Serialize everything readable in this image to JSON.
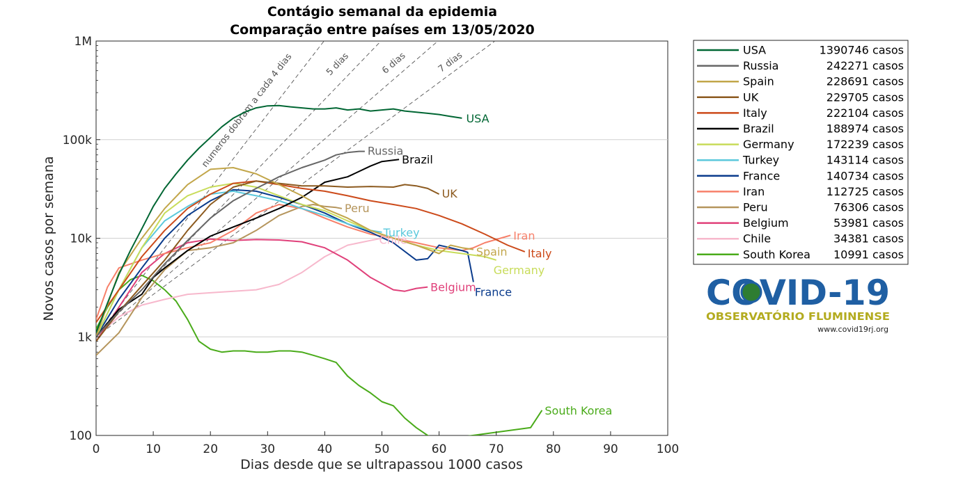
{
  "chart_data": {
    "type": "line",
    "title": "Contágio semanal da epidemia",
    "subtitle": "Comparação entre países em 13/05/2020",
    "xlabel": "Dias desde que se ultrapassou 1000 casos",
    "ylabel": "Novos casos por semana",
    "xlim": [
      0,
      100
    ],
    "ylim": [
      100,
      1000000
    ],
    "yscale": "log",
    "xticks": [
      0,
      10,
      20,
      30,
      40,
      50,
      60,
      70,
      80,
      90,
      100
    ],
    "yticks": [
      100,
      1000,
      10000,
      100000,
      1000000
    ],
    "ytick_labels": [
      "100",
      "1k",
      "10k",
      "100k",
      "1M"
    ],
    "grid": "y-major",
    "legend_position": "outside-right",
    "doubling_guides": [
      {
        "label": "numeros dobram a cada 4 dias",
        "days": 4
      },
      {
        "label": "5 dias",
        "days": 5
      },
      {
        "label": "6 dias",
        "days": 6
      },
      {
        "label": "7 dias",
        "days": 7
      }
    ],
    "series": [
      {
        "name": "USA",
        "total": "1390746 casos",
        "color": "#006633",
        "x": [
          0,
          2,
          4,
          6,
          8,
          10,
          12,
          14,
          16,
          18,
          20,
          22,
          24,
          26,
          28,
          30,
          32,
          34,
          36,
          38,
          40,
          42,
          44,
          46,
          48,
          50,
          52,
          54,
          56,
          58,
          60,
          62,
          64
        ],
        "y": [
          1100,
          2200,
          4300,
          7500,
          12500,
          21000,
          32000,
          45000,
          62000,
          82000,
          105000,
          135000,
          165000,
          190000,
          210000,
          220000,
          222000,
          215000,
          210000,
          205000,
          205000,
          210000,
          200000,
          205000,
          195000,
          200000,
          205000,
          195000,
          190000,
          185000,
          180000,
          172000,
          165000
        ]
      },
      {
        "name": "Russia",
        "total": "242271 casos",
        "color": "#666666",
        "x": [
          0,
          4,
          8,
          12,
          16,
          20,
          24,
          28,
          32,
          36,
          40,
          42,
          44,
          46,
          47
        ],
        "y": [
          1000,
          1800,
          3000,
          5500,
          9500,
          16000,
          24000,
          32000,
          42000,
          52000,
          62000,
          70000,
          74000,
          76000,
          76000
        ]
      },
      {
        "name": "Spain",
        "total": "228691 casos",
        "color": "#c2a64a",
        "x": [
          0,
          4,
          8,
          12,
          16,
          20,
          24,
          28,
          32,
          36,
          40,
          44,
          48,
          52,
          56,
          60,
          62,
          64,
          66
        ],
        "y": [
          1000,
          4500,
          10000,
          20000,
          35000,
          50000,
          52000,
          45000,
          35000,
          27000,
          20000,
          16000,
          12000,
          10000,
          8500,
          7000,
          8500,
          8000,
          7700
        ]
      },
      {
        "name": "UK",
        "total": "229705 casos",
        "color": "#8c5a1f",
        "x": [
          0,
          4,
          8,
          12,
          16,
          20,
          24,
          28,
          32,
          36,
          40,
          44,
          48,
          52,
          54,
          56,
          58,
          60
        ],
        "y": [
          900,
          1800,
          3300,
          6000,
          12000,
          22000,
          33000,
          38000,
          36000,
          34000,
          34000,
          33000,
          33500,
          33000,
          35000,
          34000,
          32000,
          28000
        ]
      },
      {
        "name": "Italy",
        "total": "222104 casos",
        "color": "#cc4a1a",
        "x": [
          0,
          4,
          8,
          12,
          16,
          20,
          24,
          28,
          32,
          36,
          40,
          44,
          48,
          52,
          56,
          60,
          64,
          68,
          72,
          75
        ],
        "y": [
          1400,
          3000,
          6500,
          12000,
          20000,
          28000,
          36000,
          38000,
          35000,
          32000,
          30000,
          27000,
          24000,
          22000,
          20000,
          17000,
          14000,
          11000,
          8500,
          7300
        ]
      },
      {
        "name": "Brazil",
        "total": "188974 casos",
        "color": "#000000",
        "x": [
          0,
          4,
          8,
          10,
          12,
          16,
          20,
          24,
          28,
          32,
          36,
          40,
          44,
          48,
          50,
          52,
          53
        ],
        "y": [
          1000,
          1900,
          2700,
          4000,
          5000,
          7500,
          10500,
          13000,
          16000,
          20000,
          26000,
          37000,
          42000,
          54000,
          60000,
          62000,
          63000
        ]
      },
      {
        "name": "Germany",
        "total": "172239 casos",
        "color": "#c8dc5a",
        "x": [
          0,
          4,
          8,
          12,
          16,
          20,
          24,
          28,
          32,
          36,
          40,
          44,
          48,
          52,
          56,
          60,
          64,
          68,
          70
        ],
        "y": [
          1000,
          3000,
          8000,
          18000,
          27000,
          33000,
          36000,
          33000,
          27000,
          22000,
          19000,
          15000,
          12000,
          10000,
          8500,
          7500,
          7000,
          6500,
          6000
        ]
      },
      {
        "name": "Turkey",
        "total": "143114 casos",
        "color": "#5bc8dc",
        "x": [
          0,
          4,
          8,
          12,
          16,
          20,
          24,
          28,
          32,
          36,
          40,
          44,
          48,
          50
        ],
        "y": [
          1000,
          3000,
          8000,
          15000,
          21000,
          28000,
          30000,
          27000,
          24000,
          20000,
          17000,
          14000,
          12000,
          11500
        ]
      },
      {
        "name": "France",
        "total": "140734 casos",
        "color": "#0a3b8c",
        "x": [
          0,
          4,
          8,
          12,
          16,
          20,
          24,
          28,
          32,
          36,
          40,
          44,
          48,
          52,
          56,
          58,
          60,
          62,
          64,
          65,
          66
        ],
        "y": [
          1000,
          2400,
          5000,
          10000,
          17000,
          24000,
          31000,
          30000,
          26000,
          22000,
          18000,
          14000,
          11500,
          9000,
          6000,
          6200,
          8500,
          8000,
          7500,
          7200,
          3600
        ]
      },
      {
        "name": "Iran",
        "total": "112725 casos",
        "color": "#f7806a",
        "x": [
          0,
          2,
          4,
          8,
          12,
          16,
          20,
          24,
          28,
          32,
          36,
          40,
          44,
          48,
          52,
          56,
          60,
          64,
          66,
          68,
          72,
          72.5
        ],
        "y": [
          1500,
          3200,
          5000,
          6000,
          7000,
          8000,
          9000,
          12000,
          18000,
          22000,
          20000,
          16000,
          13000,
          11000,
          10000,
          9000,
          8000,
          7500,
          8000,
          9000,
          10500,
          10700
        ]
      },
      {
        "name": "Peru",
        "total": "76306 casos",
        "color": "#b5955c",
        "x": [
          0,
          4,
          8,
          12,
          16,
          20,
          24,
          28,
          32,
          36,
          38,
          40,
          42,
          43
        ],
        "y": [
          650,
          1100,
          2500,
          4800,
          7500,
          8000,
          9000,
          12000,
          17000,
          21000,
          22000,
          21000,
          20500,
          20000
        ]
      },
      {
        "name": "Belgium",
        "total": "53981 casos",
        "color": "#e0407a",
        "x": [
          0,
          4,
          8,
          12,
          16,
          20,
          24,
          28,
          32,
          36,
          40,
          44,
          48,
          52,
          54,
          56,
          58
        ],
        "y": [
          900,
          2000,
          4500,
          7000,
          9000,
          9800,
          9500,
          9700,
          9600,
          9200,
          8000,
          6000,
          4000,
          3000,
          2900,
          3100,
          3200
        ]
      },
      {
        "name": "Chile",
        "total": "34381 casos",
        "color": "#f7b8cc",
        "x": [
          0,
          4,
          8,
          12,
          16,
          20,
          24,
          28,
          32,
          36,
          40,
          44,
          48,
          50
        ],
        "y": [
          1000,
          1600,
          2100,
          2400,
          2700,
          2800,
          2900,
          3000,
          3400,
          4500,
          6500,
          8500,
          9500,
          10000
        ]
      },
      {
        "name": "South Korea",
        "total": "10991 casos",
        "color": "#4aab1a",
        "x": [
          0,
          2,
          4,
          6,
          8,
          10,
          12,
          14,
          16,
          18,
          20,
          22,
          24,
          26,
          28,
          30,
          32,
          34,
          36,
          38,
          40,
          42,
          44,
          46,
          48,
          50,
          52,
          54,
          56,
          58,
          60,
          76,
          78
        ],
        "y": [
          1200,
          2000,
          3000,
          3800,
          4200,
          3700,
          3000,
          2300,
          1500,
          900,
          750,
          700,
          720,
          720,
          700,
          700,
          720,
          720,
          700,
          650,
          600,
          550,
          400,
          320,
          270,
          220,
          200,
          150,
          120,
          100,
          90,
          120,
          180
        ]
      }
    ]
  },
  "logo": {
    "word": "COVID-19",
    "subtitle": "OBSERVATÓRIO FLUMINENSE",
    "url": "www.covid19rj.org"
  }
}
